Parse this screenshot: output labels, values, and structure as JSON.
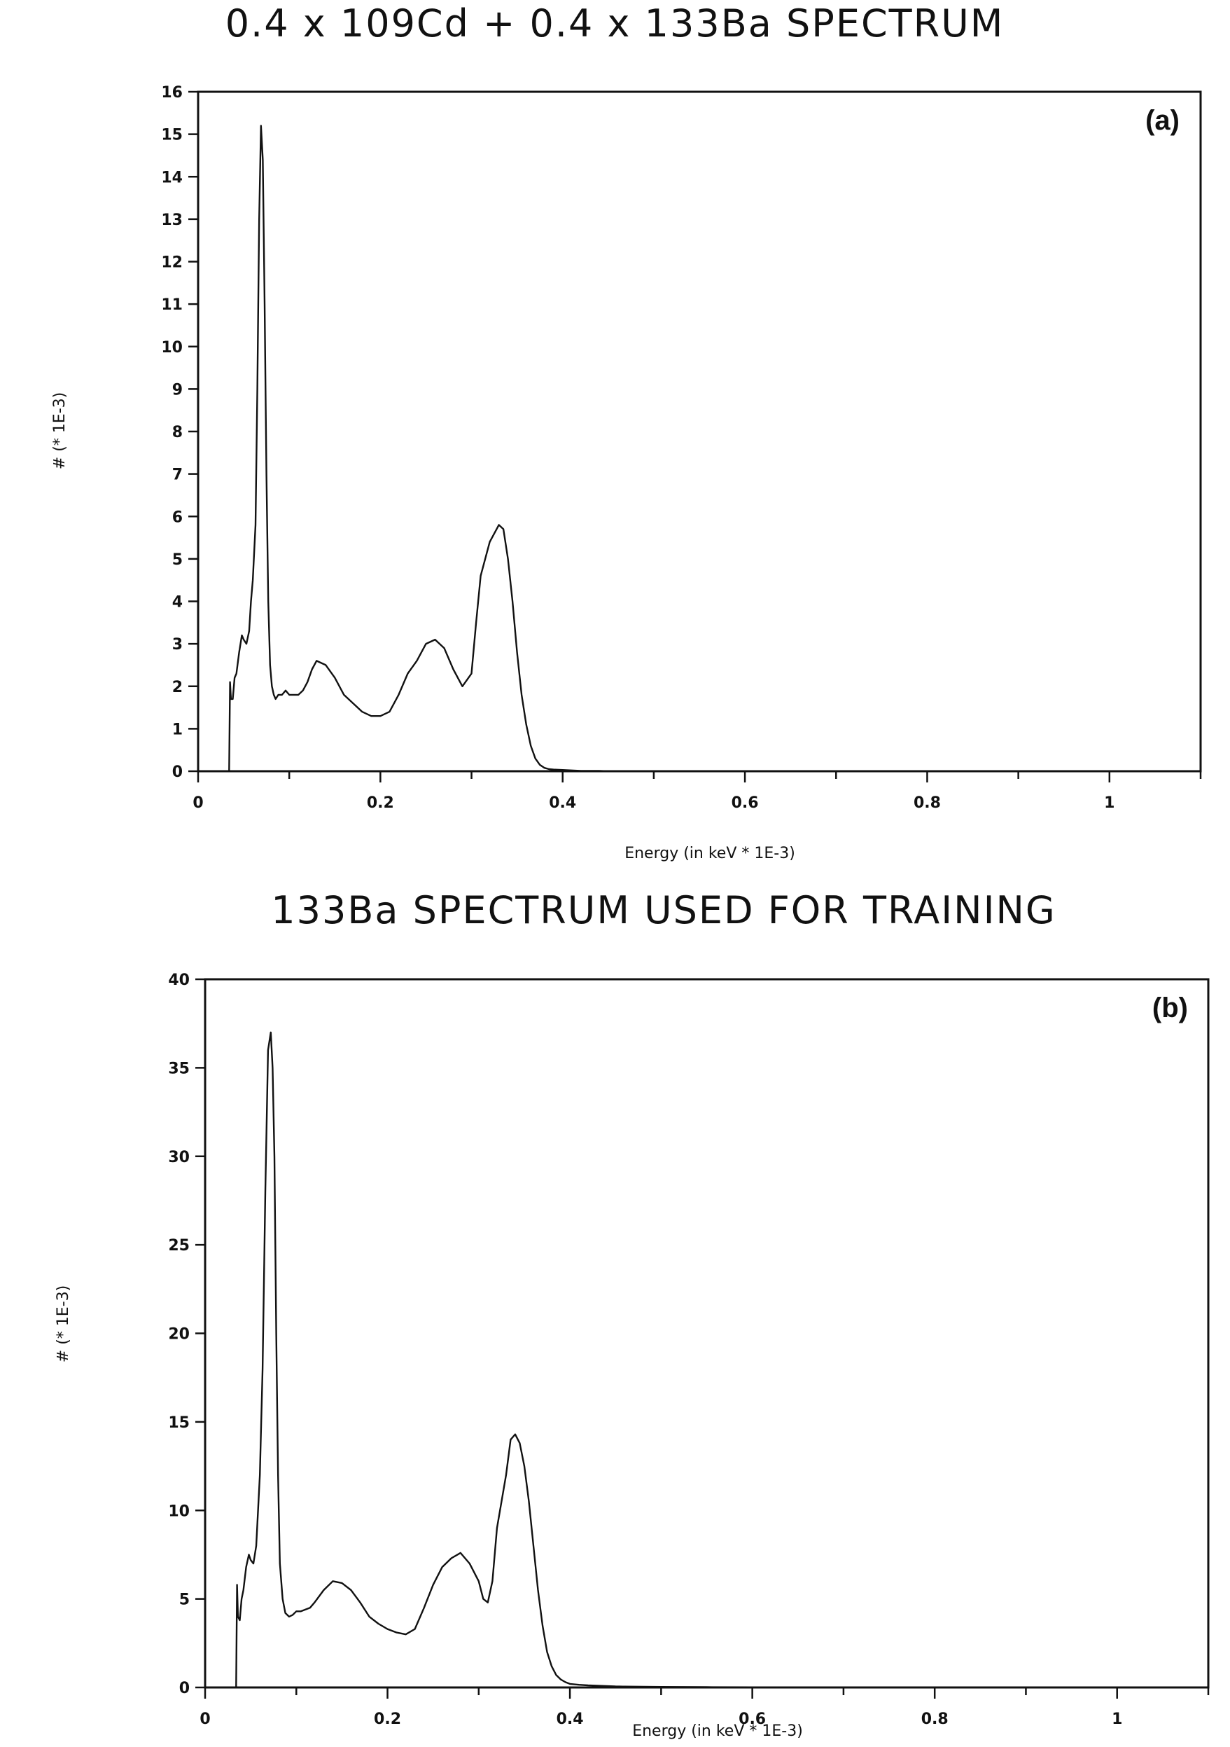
{
  "chart_data": [
    {
      "type": "line",
      "title": "0.4 x 109Cd  +  0.4 x 133Ba SPECTRUM",
      "panel_label": "(a)",
      "xlabel": "Energy (in keV * 1E-3)",
      "ylabel": "#  (* 1E-3)",
      "xlim": [
        0,
        1.1
      ],
      "ylim": [
        0,
        16
      ],
      "x_ticks": [
        0,
        0.2,
        0.4,
        0.6,
        0.8,
        1
      ],
      "x_tick_labels": [
        "0",
        "0.2",
        "0.4",
        "0.6",
        "0.8",
        "1"
      ],
      "y_ticks": [
        0,
        1,
        2,
        3,
        4,
        5,
        6,
        7,
        8,
        9,
        10,
        11,
        12,
        13,
        14,
        15,
        16
      ],
      "y_tick_labels": [
        "0",
        "1",
        "2",
        "3",
        "4",
        "5",
        "6",
        "7",
        "8",
        "9",
        "10",
        "11",
        "12",
        "13",
        "14",
        "15",
        "16"
      ],
      "grid": false,
      "x": [
        0.034,
        0.035,
        0.036,
        0.038,
        0.04,
        0.042,
        0.045,
        0.048,
        0.05,
        0.053,
        0.056,
        0.058,
        0.06,
        0.063,
        0.065,
        0.067,
        0.069,
        0.071,
        0.073,
        0.075,
        0.077,
        0.079,
        0.081,
        0.083,
        0.085,
        0.088,
        0.092,
        0.096,
        0.1,
        0.105,
        0.11,
        0.115,
        0.12,
        0.125,
        0.13,
        0.14,
        0.15,
        0.16,
        0.17,
        0.18,
        0.19,
        0.2,
        0.21,
        0.22,
        0.23,
        0.24,
        0.25,
        0.26,
        0.27,
        0.28,
        0.29,
        0.3,
        0.305,
        0.31,
        0.32,
        0.33,
        0.335,
        0.34,
        0.345,
        0.35,
        0.355,
        0.36,
        0.365,
        0.37,
        0.375,
        0.38,
        0.385,
        0.39,
        0.4,
        0.41,
        0.42,
        0.43,
        0.44,
        0.45,
        0.46,
        0.48,
        0.5,
        0.55,
        0.6,
        0.7,
        0.8,
        0.9,
        1.0,
        1.1
      ],
      "y": [
        0,
        2.1,
        1.7,
        1.7,
        2.2,
        2.3,
        2.8,
        3.2,
        3.1,
        3.0,
        3.3,
        4.0,
        4.5,
        5.8,
        9.0,
        13.0,
        15.2,
        14.4,
        11.0,
        7.0,
        4.0,
        2.5,
        2.0,
        1.8,
        1.7,
        1.8,
        1.8,
        1.9,
        1.8,
        1.8,
        1.8,
        1.9,
        2.1,
        2.4,
        2.6,
        2.5,
        2.2,
        1.8,
        1.6,
        1.4,
        1.3,
        1.3,
        1.4,
        1.8,
        2.3,
        2.6,
        3.0,
        3.1,
        2.9,
        2.4,
        2.0,
        2.3,
        3.5,
        4.6,
        5.4,
        5.8,
        5.7,
        5.0,
        4.0,
        2.8,
        1.8,
        1.1,
        0.6,
        0.3,
        0.15,
        0.08,
        0.05,
        0.04,
        0.03,
        0.02,
        0.01,
        0.01,
        0.01,
        0,
        0,
        0,
        0,
        0,
        0,
        0,
        0,
        0,
        0,
        0
      ]
    },
    {
      "type": "line",
      "title": "133Ba SPECTRUM USED FOR TRAINING",
      "panel_label": "(b)",
      "xlabel": "Energy (in keV * 1E-3)",
      "ylabel": "#  (* 1E-3)",
      "xlim": [
        0,
        1.1
      ],
      "ylim": [
        0,
        40
      ],
      "x_ticks": [
        0,
        0.2,
        0.4,
        0.6,
        0.8,
        1
      ],
      "x_tick_labels": [
        "0",
        "0.2",
        "0.4",
        "0.6",
        "0.8",
        "1"
      ],
      "y_ticks": [
        0,
        5,
        10,
        15,
        20,
        25,
        30,
        35,
        40
      ],
      "y_tick_labels": [
        "0",
        "5",
        "10",
        "15",
        "20",
        "25",
        "30",
        "35",
        "40"
      ],
      "grid": false,
      "x": [
        0.034,
        0.035,
        0.036,
        0.038,
        0.04,
        0.042,
        0.045,
        0.048,
        0.05,
        0.053,
        0.056,
        0.058,
        0.06,
        0.063,
        0.066,
        0.069,
        0.072,
        0.074,
        0.076,
        0.078,
        0.08,
        0.082,
        0.085,
        0.088,
        0.092,
        0.096,
        0.1,
        0.105,
        0.11,
        0.115,
        0.12,
        0.13,
        0.14,
        0.15,
        0.16,
        0.17,
        0.18,
        0.19,
        0.2,
        0.21,
        0.22,
        0.23,
        0.24,
        0.25,
        0.26,
        0.27,
        0.28,
        0.29,
        0.3,
        0.305,
        0.31,
        0.315,
        0.32,
        0.33,
        0.335,
        0.34,
        0.345,
        0.35,
        0.355,
        0.36,
        0.365,
        0.37,
        0.375,
        0.38,
        0.385,
        0.39,
        0.395,
        0.4,
        0.41,
        0.42,
        0.43,
        0.44,
        0.45,
        0.46,
        0.48,
        0.5,
        0.55,
        0.6,
        0.7,
        0.8,
        0.9,
        1.0,
        1.1
      ],
      "y": [
        0,
        5.8,
        4.0,
        3.8,
        5.0,
        5.5,
        6.8,
        7.5,
        7.2,
        7.0,
        8.0,
        10.0,
        12.0,
        18.0,
        28.0,
        36.0,
        37.0,
        35.0,
        30.0,
        20.0,
        12.0,
        7.0,
        5.0,
        4.2,
        4.0,
        4.1,
        4.3,
        4.3,
        4.4,
        4.5,
        4.8,
        5.5,
        6.0,
        5.9,
        5.5,
        4.8,
        4.0,
        3.6,
        3.3,
        3.1,
        3.0,
        3.3,
        4.5,
        5.8,
        6.8,
        7.3,
        7.6,
        7.0,
        6.0,
        5.0,
        4.8,
        6.0,
        9.0,
        12.0,
        14.0,
        14.3,
        13.8,
        12.5,
        10.5,
        8.0,
        5.5,
        3.5,
        2.0,
        1.2,
        0.7,
        0.45,
        0.3,
        0.2,
        0.15,
        0.12,
        0.1,
        0.08,
        0.06,
        0.05,
        0.04,
        0.03,
        0.02,
        0.01,
        0,
        0,
        0,
        0,
        0
      ]
    }
  ]
}
